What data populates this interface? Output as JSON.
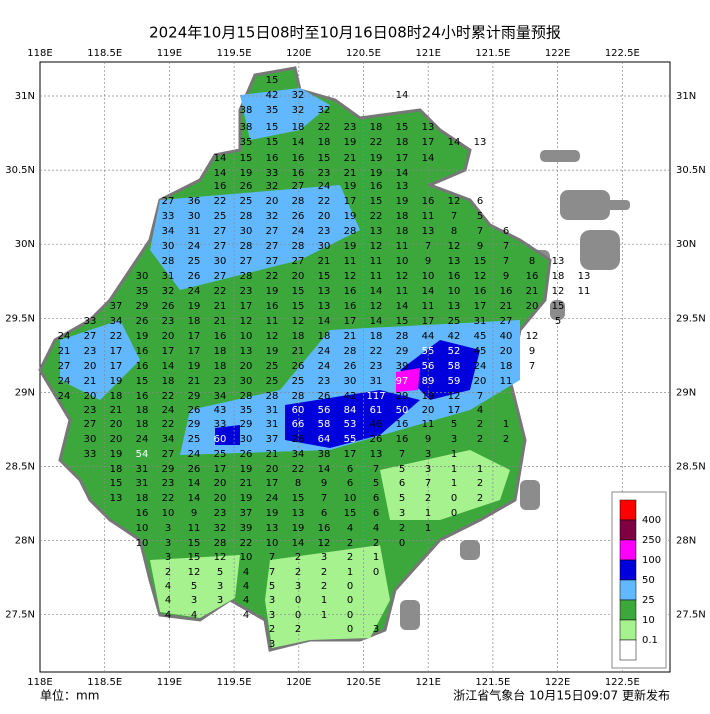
{
  "title": "2024年10月15日08时至10月16日08时24小时累计雨量预报",
  "unit": "单位：mm",
  "footer": "浙江省气象台 10月15日09:07 更新发布",
  "lon_labels": [
    "118E",
    "118.5E",
    "119E",
    "119.5E",
    "120E",
    "120.5E",
    "121E",
    "121.5E",
    "122E",
    "122.5E"
  ],
  "lat_labels": [
    "31N",
    "30.5N",
    "30N",
    "29.5N",
    "29N",
    "28.5N",
    "28N",
    "27.5N"
  ],
  "legend": [
    {
      "label": "400",
      "color": "#ff0000"
    },
    {
      "label": "250",
      "color": "#7f0040"
    },
    {
      "label": "100",
      "color": "#ff00ff"
    },
    {
      "label": "50",
      "color": "#0000dd"
    },
    {
      "label": "25",
      "color": "#61b8ff"
    },
    {
      "label": "10",
      "color": "#3ca83c"
    },
    {
      "label": "0.1",
      "color": "#a6f28f"
    }
  ],
  "stations": [
    [
      15
    ],
    [
      42,
      32,
      null,
      null,
      null,
      14
    ],
    [
      38,
      35,
      32,
      32
    ],
    [
      38,
      15,
      18,
      22,
      23,
      18,
      15,
      13
    ],
    [
      35,
      15,
      14,
      18,
      19,
      22,
      18,
      17,
      14,
      13
    ],
    [
      14,
      15,
      16,
      16,
      15,
      21,
      19,
      17,
      14
    ],
    [
      14,
      19,
      33,
      16,
      23,
      21,
      19,
      14
    ],
    [
      16,
      26,
      32,
      27,
      24,
      19,
      16,
      13
    ],
    [
      27,
      36,
      22,
      25,
      20,
      28,
      22,
      17,
      15,
      19,
      16,
      12,
      6
    ],
    [
      33,
      30,
      25,
      28,
      32,
      26,
      20,
      19,
      22,
      18,
      11,
      7,
      5
    ],
    [
      34,
      31,
      27,
      30,
      27,
      24,
      23,
      28,
      13,
      18,
      13,
      8,
      7,
      6
    ],
    [
      30,
      24,
      27,
      28,
      27,
      28,
      30,
      19,
      12,
      11,
      7,
      12,
      9,
      7
    ],
    [
      28,
      25,
      30,
      27,
      27,
      27,
      21,
      11,
      11,
      10,
      9,
      13,
      15,
      7,
      8,
      13
    ],
    [
      30,
      31,
      26,
      27,
      28,
      22,
      20,
      15,
      12,
      11,
      12,
      10,
      16,
      12,
      9,
      16,
      18,
      13
    ],
    [
      35,
      32,
      24,
      22,
      23,
      19,
      15,
      13,
      16,
      14,
      11,
      14,
      10,
      16,
      16,
      21,
      12,
      11
    ],
    [
      37,
      29,
      26,
      19,
      21,
      17,
      16,
      15,
      13,
      16,
      12,
      14,
      11,
      13,
      17,
      21,
      20,
      15
    ],
    [
      33,
      34,
      26,
      23,
      18,
      21,
      12,
      11,
      12,
      14,
      17,
      14,
      15,
      17,
      25,
      31,
      27,
      null,
      5
    ],
    [
      24,
      27,
      22,
      19,
      20,
      17,
      16,
      10,
      12,
      18,
      18,
      21,
      18,
      28,
      44,
      42,
      45,
      40,
      12
    ],
    [
      21,
      23,
      17,
      16,
      17,
      17,
      18,
      13,
      19,
      21,
      24,
      28,
      22,
      29,
      55,
      52,
      45,
      20,
      9
    ],
    [
      27,
      20,
      17,
      16,
      14,
      19,
      18,
      20,
      25,
      26,
      24,
      26,
      23,
      39,
      56,
      58,
      24,
      18,
      7
    ],
    [
      24,
      21,
      19,
      15,
      18,
      21,
      23,
      30,
      25,
      25,
      23,
      30,
      31,
      97,
      89,
      59,
      20,
      11
    ],
    [
      24,
      20,
      18,
      16,
      22,
      29,
      34,
      28,
      28,
      28,
      26,
      42,
      117,
      29,
      19,
      12,
      7
    ],
    [
      23,
      21,
      18,
      24,
      26,
      43,
      35,
      31,
      60,
      56,
      84,
      61,
      50,
      20,
      17,
      4
    ],
    [
      27,
      20,
      18,
      22,
      29,
      33,
      29,
      31,
      66,
      58,
      53,
      46,
      16,
      11,
      5,
      2,
      1
    ],
    [
      30,
      20,
      24,
      34,
      25,
      60,
      30,
      37,
      26,
      64,
      55,
      26,
      16,
      9,
      3,
      2,
      2
    ],
    [
      33,
      19,
      54,
      27,
      24,
      25,
      26,
      21,
      34,
      38,
      17,
      13,
      7,
      3,
      1
    ],
    [
      18,
      31,
      29,
      26,
      17,
      19,
      20,
      22,
      14,
      6,
      7,
      5,
      3,
      1,
      1
    ],
    [
      15,
      31,
      23,
      14,
      20,
      21,
      17,
      8,
      9,
      6,
      5,
      6,
      7,
      1,
      2
    ],
    [
      13,
      18,
      22,
      14,
      20,
      19,
      24,
      15,
      7,
      10,
      6,
      5,
      2,
      0,
      2
    ],
    [
      16,
      10,
      9,
      23,
      37,
      19,
      13,
      6,
      15,
      6,
      3,
      1,
      0
    ],
    [
      10,
      3,
      11,
      32,
      39,
      13,
      19,
      16,
      4,
      4,
      2,
      1
    ],
    [
      10,
      3,
      15,
      28,
      22,
      10,
      14,
      12,
      2,
      2,
      0
    ],
    [
      3,
      15,
      12,
      10,
      7,
      2,
      3,
      2,
      1
    ],
    [
      2,
      12,
      5,
      4,
      7,
      2,
      2,
      1,
      0
    ],
    [
      4,
      5,
      3,
      4,
      5,
      3,
      2,
      0
    ],
    [
      4,
      3,
      3,
      4,
      3,
      0,
      1,
      0
    ],
    [
      4,
      4,
      null,
      4,
      3,
      0,
      1,
      0
    ],
    [
      2,
      2,
      null,
      0,
      3
    ],
    [
      3
    ]
  ]
}
